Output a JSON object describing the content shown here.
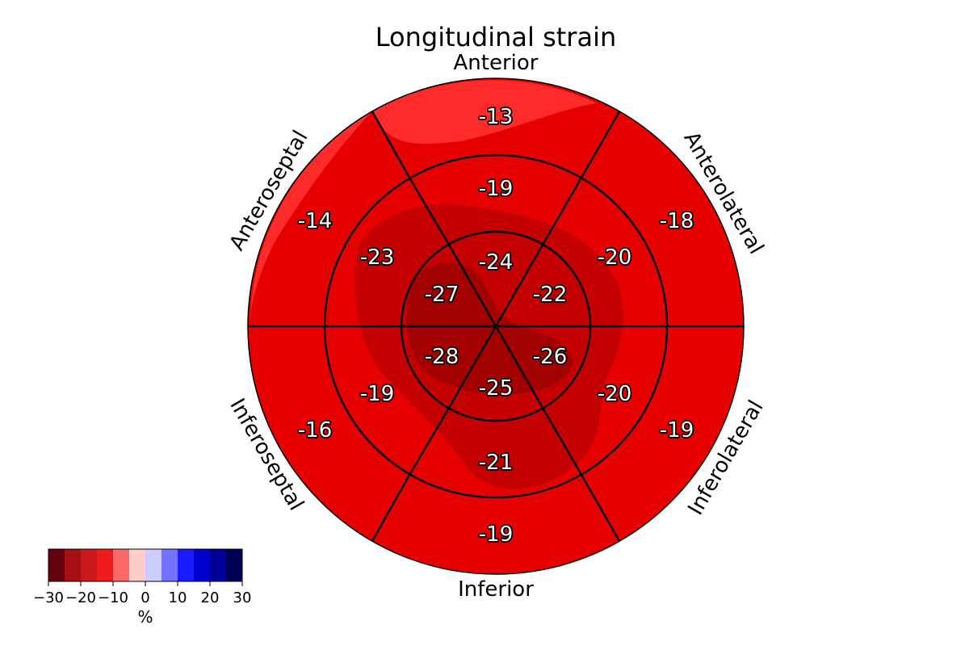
{
  "chart_data": {
    "type": "heatmap",
    "subtype": "bullseye-17-segment",
    "title": "Longitudinal strain",
    "wall_labels": [
      "Anterior",
      "Anterolateral",
      "Inferolateral",
      "Inferior",
      "Inferoseptal",
      "Anteroseptal"
    ],
    "rings": [
      {
        "ring": "basal",
        "values": [
          -13,
          -18,
          -19,
          -19,
          -16,
          -14
        ]
      },
      {
        "ring": "mid",
        "values": [
          -19,
          -20,
          -20,
          -21,
          -19,
          -23
        ]
      },
      {
        "ring": "apical",
        "values": [
          -24,
          -22,
          -26,
          -25,
          -28,
          -27
        ]
      }
    ],
    "colorbar": {
      "unit": "%",
      "ticks": [
        "−30",
        "−20",
        "−10",
        "0",
        "10",
        "20",
        "30"
      ],
      "range": [
        -30,
        30
      ],
      "colors": [
        "#67000d",
        "#a50f15",
        "#cb181d",
        "#ef1a1a",
        "#fb6a6a",
        "#ffcccc",
        "#ccccff",
        "#7373ff",
        "#1a1aff",
        "#0000cc",
        "#000099",
        "#000055"
      ]
    }
  }
}
